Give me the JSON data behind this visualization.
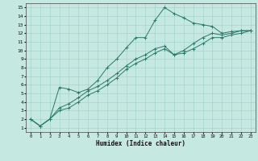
{
  "xlabel": "Humidex (Indice chaleur)",
  "xlim": [
    -0.5,
    23.5
  ],
  "ylim": [
    0.5,
    15.5
  ],
  "xticks": [
    0,
    1,
    2,
    3,
    4,
    5,
    6,
    7,
    8,
    9,
    10,
    11,
    12,
    13,
    14,
    15,
    16,
    17,
    18,
    19,
    20,
    21,
    22,
    23
  ],
  "yticks": [
    1,
    2,
    3,
    4,
    5,
    6,
    7,
    8,
    9,
    10,
    11,
    12,
    13,
    14,
    15
  ],
  "bg_color": "#c5e8e0",
  "line_color": "#2a7a6a",
  "grid_color": "#9ecfca",
  "line1_x": [
    0,
    1,
    2,
    3,
    4,
    5,
    6,
    7,
    8,
    9,
    10,
    11,
    12,
    13,
    14,
    15,
    16,
    17,
    18,
    19,
    20,
    21,
    22,
    23
  ],
  "line1_y": [
    2.0,
    1.2,
    2.0,
    5.7,
    5.5,
    5.1,
    5.5,
    6.5,
    8.0,
    9.0,
    10.3,
    11.5,
    11.5,
    13.5,
    15.0,
    14.3,
    13.8,
    13.2,
    13.0,
    12.8,
    12.0,
    12.2,
    12.3,
    12.3
  ],
  "line2_x": [
    0,
    1,
    2,
    3,
    4,
    5,
    6,
    7,
    8,
    9,
    10,
    11,
    12,
    13,
    14,
    15,
    16,
    17,
    18,
    19,
    20,
    21,
    22,
    23
  ],
  "line2_y": [
    2.0,
    1.2,
    2.0,
    3.3,
    3.8,
    4.5,
    5.3,
    5.8,
    6.5,
    7.3,
    8.2,
    9.0,
    9.5,
    10.2,
    10.5,
    9.5,
    10.0,
    10.8,
    11.5,
    12.0,
    11.8,
    12.0,
    12.3,
    12.3
  ],
  "line3_x": [
    0,
    1,
    2,
    3,
    4,
    5,
    6,
    7,
    8,
    9,
    10,
    11,
    12,
    13,
    14,
    15,
    16,
    17,
    18,
    19,
    20,
    21,
    22,
    23
  ],
  "line3_y": [
    2.0,
    1.2,
    2.0,
    3.0,
    3.3,
    4.0,
    4.8,
    5.3,
    6.0,
    6.8,
    7.8,
    8.5,
    9.0,
    9.7,
    10.2,
    9.5,
    9.7,
    10.2,
    10.8,
    11.5,
    11.5,
    11.8,
    12.0,
    12.3
  ]
}
